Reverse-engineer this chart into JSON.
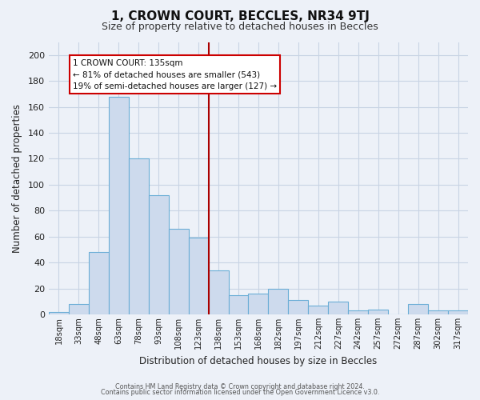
{
  "title": "1, CROWN COURT, BECCLES, NR34 9TJ",
  "subtitle": "Size of property relative to detached houses in Beccles",
  "xlabel": "Distribution of detached houses by size in Beccles",
  "ylabel": "Number of detached properties",
  "bar_labels": [
    "18sqm",
    "33sqm",
    "48sqm",
    "63sqm",
    "78sqm",
    "93sqm",
    "108sqm",
    "123sqm",
    "138sqm",
    "153sqm",
    "168sqm",
    "182sqm",
    "197sqm",
    "212sqm",
    "227sqm",
    "242sqm",
    "257sqm",
    "272sqm",
    "287sqm",
    "302sqm",
    "317sqm"
  ],
  "bar_values": [
    2,
    8,
    48,
    168,
    120,
    92,
    66,
    59,
    34,
    15,
    16,
    20,
    11,
    7,
    10,
    3,
    4,
    0,
    8,
    3,
    3
  ],
  "bar_color": "#cddaed",
  "bar_edge_color": "#6baed6",
  "grid_color": "#c8d4e4",
  "background_color": "#edf1f8",
  "annotation_text_line1": "1 CROWN COURT: 135sqm",
  "annotation_text_line2": "← 81% of detached houses are smaller (543)",
  "annotation_text_line3": "19% of semi-detached houses are larger (127) →",
  "annotation_box_color": "#ffffff",
  "annotation_box_edge": "#cc0000",
  "vline_color": "#aa0000",
  "ylim": [
    0,
    210
  ],
  "yticks": [
    0,
    20,
    40,
    60,
    80,
    100,
    120,
    140,
    160,
    180,
    200
  ],
  "footer1": "Contains HM Land Registry data © Crown copyright and database right 2024.",
  "footer2": "Contains public sector information licensed under the Open Government Licence v3.0."
}
